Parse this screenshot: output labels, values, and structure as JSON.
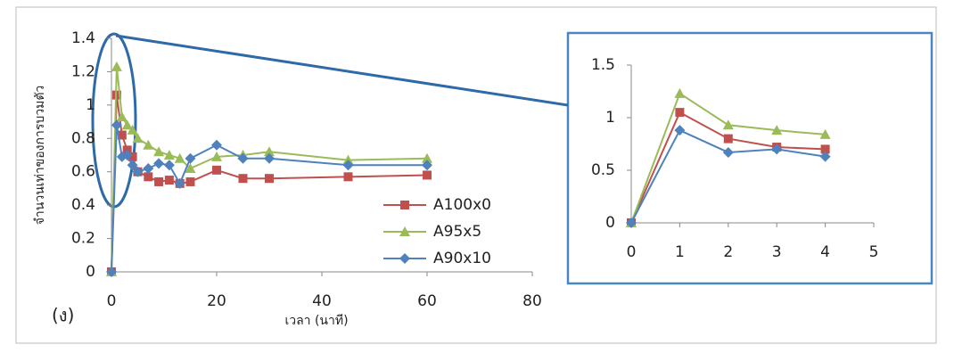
{
  "chart_data": [
    {
      "type": "line",
      "annotation": "(ง)",
      "xlabel": "เวลา (นาที)",
      "ylabel": "จำนวนเท่าของการบวมตัว",
      "x": [
        0,
        1,
        2,
        3,
        4,
        5,
        7,
        9,
        11,
        13,
        15,
        20,
        25,
        30,
        45,
        60
      ],
      "series": [
        {
          "name": "A100x0",
          "color": "#c0504d",
          "marker": "square",
          "values": [
            0,
            1.06,
            0.82,
            0.73,
            0.69,
            0.6,
            0.57,
            0.54,
            0.55,
            0.53,
            0.54,
            0.61,
            0.56,
            0.56,
            0.57,
            0.58
          ]
        },
        {
          "name": "A95x5",
          "color": "#9bbb59",
          "marker": "triangle",
          "values": [
            0,
            1.23,
            0.93,
            0.88,
            0.85,
            0.8,
            0.76,
            0.72,
            0.7,
            0.68,
            0.62,
            0.69,
            0.7,
            0.72,
            0.67,
            0.68
          ]
        },
        {
          "name": "A90x10",
          "color": "#4f81bd",
          "marker": "diamond",
          "values": [
            0,
            0.88,
            0.69,
            0.7,
            0.64,
            0.6,
            0.62,
            0.65,
            0.64,
            0.53,
            0.68,
            0.76,
            0.68,
            0.68,
            0.64,
            0.64
          ]
        }
      ],
      "xlim": [
        0,
        80
      ],
      "xticks": [
        0,
        20,
        40,
        60,
        80
      ],
      "ylim": [
        0,
        1.4
      ],
      "yticks": [
        0,
        0.2,
        0.4,
        0.6,
        0.8,
        1,
        1.2,
        1.4
      ],
      "legend": "center"
    },
    {
      "type": "line",
      "x": [
        0,
        1,
        2,
        3,
        4
      ],
      "series": [
        {
          "color": "#c0504d",
          "marker": "square",
          "values": [
            0,
            1.05,
            0.8,
            0.72,
            0.7
          ]
        },
        {
          "color": "#9bbb59",
          "marker": "triangle",
          "values": [
            0,
            1.23,
            0.93,
            0.88,
            0.84
          ]
        },
        {
          "color": "#4f81bd",
          "marker": "diamond",
          "values": [
            0,
            0.88,
            0.67,
            0.7,
            0.63
          ]
        }
      ],
      "xlim": [
        0,
        5
      ],
      "xticks": [
        0,
        1,
        2,
        3,
        4,
        5
      ],
      "ylim": [
        0,
        1.5
      ],
      "yticks": [
        0,
        0.5,
        1,
        1.5
      ]
    }
  ]
}
